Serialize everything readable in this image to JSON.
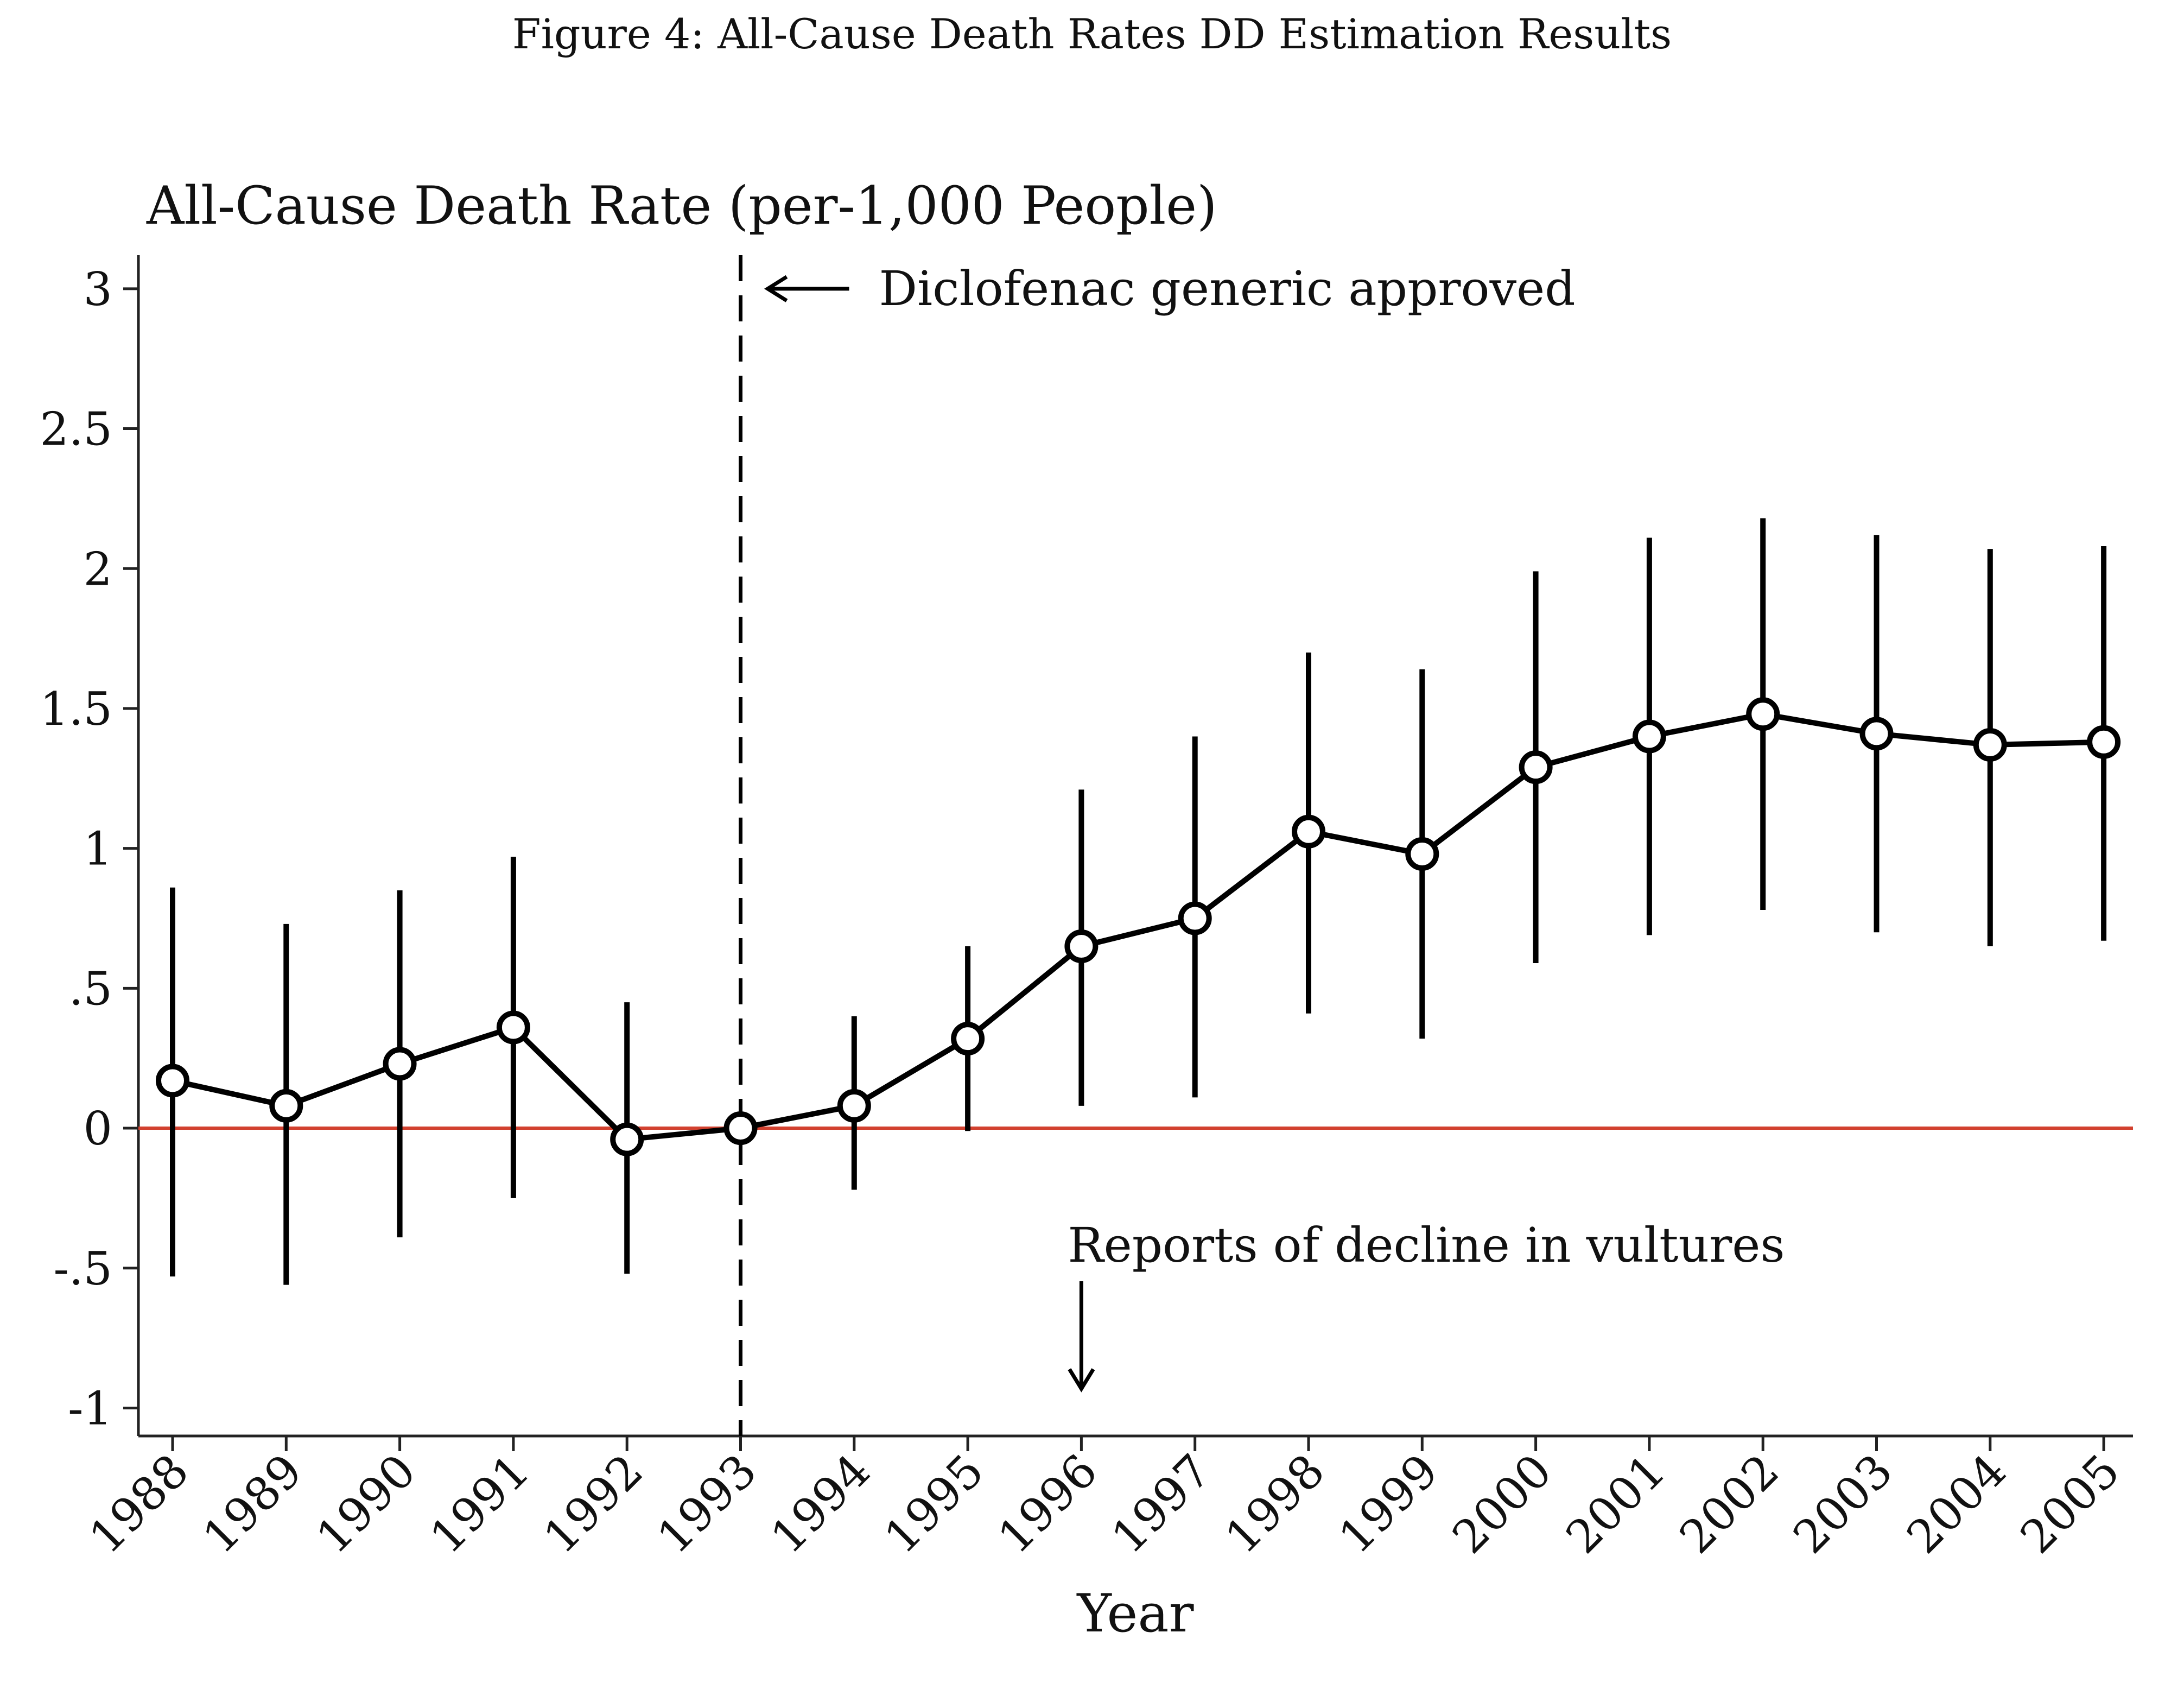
{
  "figure_title": "Figure 4: All-Cause Death Rates DD Estimation Results",
  "colors": {
    "line": "#000000",
    "marker_fill": "#ffffff",
    "zero_line": "#d2412f",
    "axis": "#222222"
  },
  "chart_data": {
    "type": "line",
    "title": "All-Cause Death Rate (per-1,000 People)",
    "xlabel": "Year",
    "ylabel": "",
    "ylim": [
      -1.1,
      3.12
    ],
    "yticks": [
      3,
      2.5,
      2,
      1.5,
      1,
      0.5,
      0,
      -0.5,
      -1
    ],
    "ytick_labels": [
      "3",
      "2.5",
      "2",
      "1.5",
      "1",
      ".5",
      "0",
      "-.5",
      "-1"
    ],
    "categories": [
      "1988",
      "1989",
      "1990",
      "1991",
      "1992",
      "1993",
      "1994",
      "1995",
      "1996",
      "1997",
      "1998",
      "1999",
      "2000",
      "2001",
      "2002",
      "2003",
      "2004",
      "2005"
    ],
    "series": [
      {
        "values": [
          0.17,
          0.08,
          0.23,
          0.36,
          -0.04,
          0.0,
          0.08,
          0.32,
          0.65,
          0.75,
          1.06,
          0.98,
          1.29,
          1.4,
          1.48,
          1.41,
          1.37,
          1.38
        ],
        "ci_low": [
          -0.53,
          -0.56,
          -0.39,
          -0.25,
          -0.52,
          0.0,
          -0.22,
          -0.01,
          0.08,
          0.11,
          0.41,
          0.32,
          0.59,
          0.69,
          0.78,
          0.7,
          0.65,
          0.67
        ],
        "ci_high": [
          0.86,
          0.73,
          0.85,
          0.97,
          0.45,
          0.0,
          0.4,
          0.65,
          1.21,
          1.4,
          1.7,
          1.64,
          1.99,
          2.11,
          2.18,
          2.12,
          2.07,
          2.08
        ]
      }
    ],
    "reference_line_y": 0,
    "vertical_line_x": "1993",
    "annotations": [
      {
        "text": "Diclofenac generic approved",
        "x": "1993",
        "y": 3,
        "arrow": "left"
      },
      {
        "text": "Reports of decline in vultures",
        "x": "1996",
        "y": -0.5,
        "arrow": "down"
      }
    ],
    "grid": false,
    "legend": "none"
  }
}
